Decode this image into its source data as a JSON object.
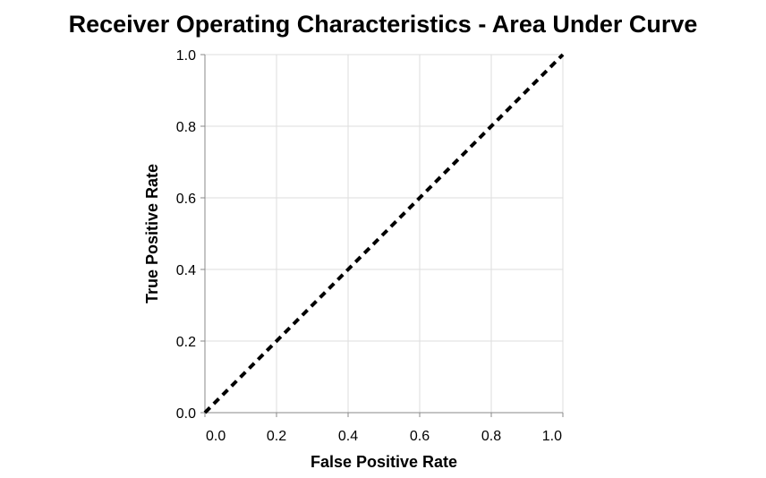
{
  "chart_data": {
    "type": "line",
    "title": "Receiver Operating Characteristics - Area Under Curve",
    "xlabel": "False Positive Rate",
    "ylabel": "True Positive Rate",
    "xlim": [
      0,
      1
    ],
    "ylim": [
      0,
      1
    ],
    "x_ticks": [
      "0.0",
      "0.2",
      "0.4",
      "0.6",
      "0.8",
      "1.0"
    ],
    "y_ticks": [
      "0.0",
      "0.2",
      "0.4",
      "0.6",
      "0.8",
      "1.0"
    ],
    "grid": true,
    "legend": "none",
    "series": [
      {
        "style": "dashed",
        "color": "#000000",
        "x": [
          0.0,
          1.0
        ],
        "y": [
          0.0,
          1.0
        ]
      }
    ]
  }
}
